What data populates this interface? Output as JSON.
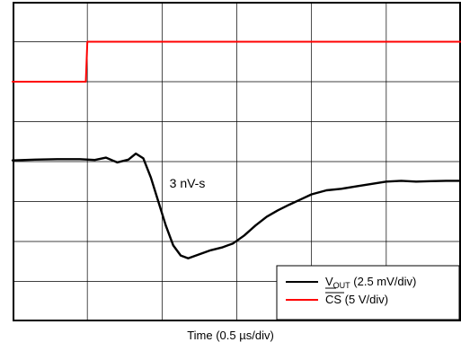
{
  "chart_data": {
    "type": "line",
    "title": "",
    "xlabel": "Time (0.5 µs/div)",
    "ylabel": "",
    "grid": true,
    "divisions": {
      "x": 6,
      "y": 8
    },
    "xlim": [
      0,
      6
    ],
    "ylim": [
      0,
      8
    ],
    "legend_position": "bottom-right",
    "series": [
      {
        "legend_main": "V",
        "legend_sub": "OUT",
        "legend_rest": " (2.5 mV/div)",
        "color": "#000000",
        "points": [
          [
            0.0,
            4.03
          ],
          [
            0.3,
            4.05
          ],
          [
            0.6,
            4.06
          ],
          [
            0.9,
            4.06
          ],
          [
            1.1,
            4.04
          ],
          [
            1.25,
            4.1
          ],
          [
            1.4,
            3.98
          ],
          [
            1.55,
            4.05
          ],
          [
            1.65,
            4.2
          ],
          [
            1.75,
            4.08
          ],
          [
            1.85,
            3.6
          ],
          [
            1.95,
            3.0
          ],
          [
            2.05,
            2.4
          ],
          [
            2.15,
            1.9
          ],
          [
            2.25,
            1.65
          ],
          [
            2.35,
            1.58
          ],
          [
            2.5,
            1.68
          ],
          [
            2.65,
            1.78
          ],
          [
            2.8,
            1.85
          ],
          [
            2.95,
            1.95
          ],
          [
            3.1,
            2.15
          ],
          [
            3.25,
            2.4
          ],
          [
            3.4,
            2.62
          ],
          [
            3.55,
            2.78
          ],
          [
            3.7,
            2.92
          ],
          [
            3.85,
            3.05
          ],
          [
            4.0,
            3.18
          ],
          [
            4.2,
            3.28
          ],
          [
            4.4,
            3.32
          ],
          [
            4.6,
            3.38
          ],
          [
            4.8,
            3.44
          ],
          [
            5.0,
            3.5
          ],
          [
            5.2,
            3.52
          ],
          [
            5.4,
            3.5
          ],
          [
            5.6,
            3.51
          ],
          [
            5.8,
            3.52
          ],
          [
            6.0,
            3.52
          ]
        ]
      },
      {
        "legend_main": "CS",
        "legend_sub": "",
        "legend_rest": " (5 V/div)",
        "color": "#ff0000",
        "points": [
          [
            0.0,
            6.0
          ],
          [
            0.98,
            6.0
          ],
          [
            1.0,
            7.0
          ],
          [
            6.0,
            7.0
          ]
        ]
      }
    ],
    "annotations": [
      {
        "text": "3 nV-s",
        "x": 2.1,
        "y": 3.35
      }
    ]
  }
}
